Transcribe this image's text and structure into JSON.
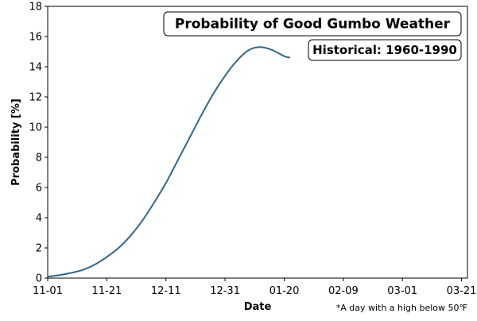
{
  "chart_data": {
    "type": "line",
    "title": "Probability of Good Gumbo Weather",
    "subtitle": "Historical: 1960-1990",
    "xlabel": "Date",
    "ylabel": "Probability [%]",
    "footnote": "*A day with a high below 50℉",
    "xlim": [
      "11-01",
      "03-23"
    ],
    "ylim": [
      0,
      18
    ],
    "x_ticks": [
      "11-01",
      "11-21",
      "12-11",
      "12-31",
      "01-20",
      "02-09",
      "03-01",
      "03-21"
    ],
    "y_ticks": [
      "0",
      "2",
      "4",
      "6",
      "8",
      "10",
      "12",
      "14",
      "16",
      "18"
    ],
    "grid": false,
    "line_color": "#30668c",
    "series": [
      {
        "name": "",
        "x": [
          "11-01",
          "11-05",
          "11-09",
          "11-13",
          "11-17",
          "11-21",
          "11-25",
          "11-29",
          "12-03",
          "12-07",
          "12-11",
          "12-15",
          "12-19",
          "12-23",
          "12-27",
          "12-31",
          "01-04",
          "01-08",
          "01-12",
          "01-16",
          "01-20",
          "01-22"
        ],
        "y": [
          0.1,
          0.2,
          0.35,
          0.55,
          0.9,
          1.4,
          2.0,
          2.8,
          3.8,
          5.0,
          6.3,
          7.8,
          9.3,
          10.8,
          12.2,
          13.4,
          14.4,
          15.1,
          15.3,
          15.1,
          14.7,
          14.6
        ]
      }
    ]
  }
}
